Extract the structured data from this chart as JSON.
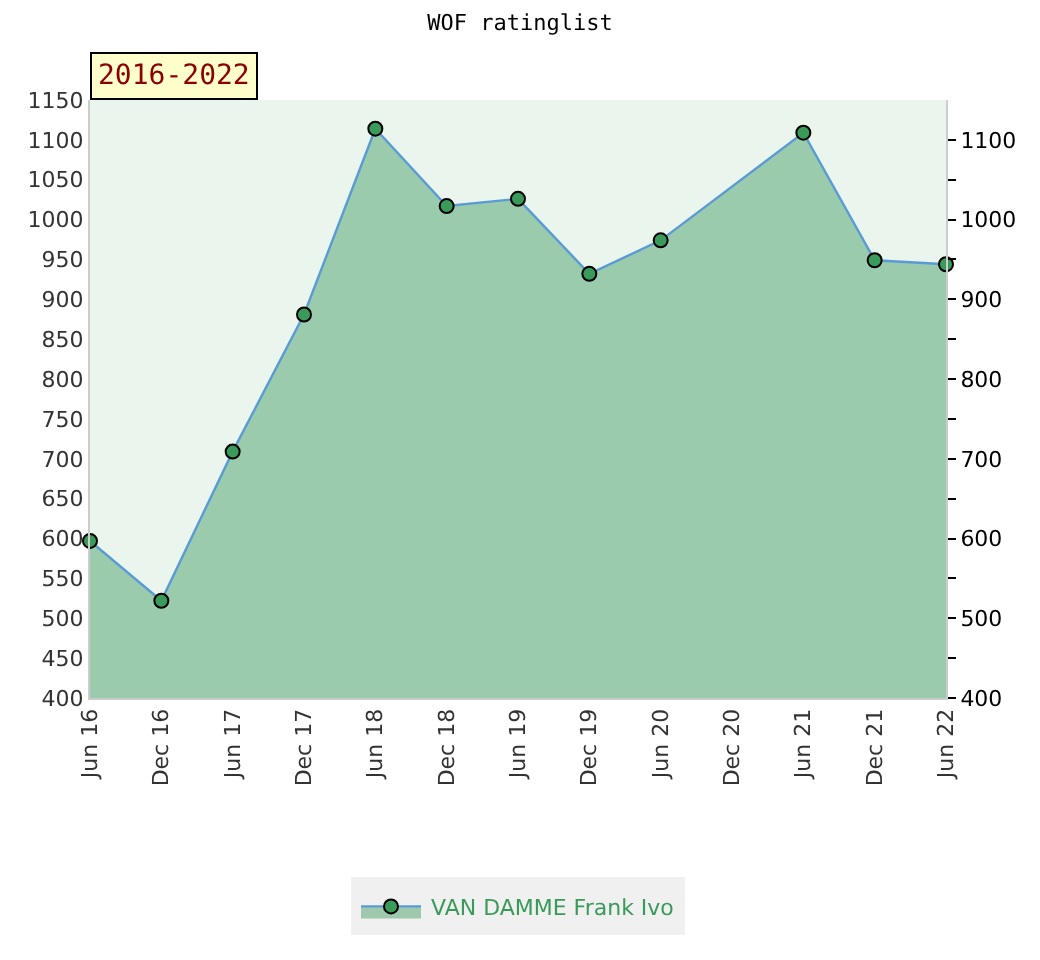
{
  "chart_data": {
    "type": "area",
    "title": "WOF ratinglist",
    "annotations": [
      "2016-2022"
    ],
    "categories": [
      "Jun 16",
      "Dec 16",
      "Jun 17",
      "Dec 17",
      "Jun 18",
      "Dec 18",
      "Jun 19",
      "Dec 19",
      "Jun 20",
      "Dec 20",
      "Jun 21",
      "Dec 21",
      "Jun 22"
    ],
    "series": [
      {
        "name": "VAN DAMME Frank Ivo",
        "color": "#3a9a5a",
        "values": [
          597,
          522,
          709,
          881,
          1114,
          1017,
          1026,
          932,
          974,
          null,
          1109,
          949,
          944
        ]
      }
    ],
    "ylim": [
      400,
      1150
    ],
    "yticks": [
      400,
      450,
      500,
      550,
      600,
      650,
      700,
      750,
      800,
      850,
      900,
      950,
      1000,
      1050,
      1100,
      1150
    ],
    "y2lim": [
      400,
      1150
    ],
    "y2ticks": [
      400,
      {
        "value": 450,
        "label": null
      },
      500,
      {
        "value": 550,
        "label": null
      },
      600,
      {
        "value": 650,
        "label": null
      },
      700,
      {
        "value": 750,
        "label": null
      },
      800,
      {
        "value": 850,
        "label": null
      },
      900,
      {
        "value": 950,
        "label": null
      },
      1000,
      {
        "value": 1050,
        "label": null
      },
      1100
    ],
    "marker": "circle",
    "line_style": "solid",
    "grid": false,
    "legend": "bottom"
  }
}
